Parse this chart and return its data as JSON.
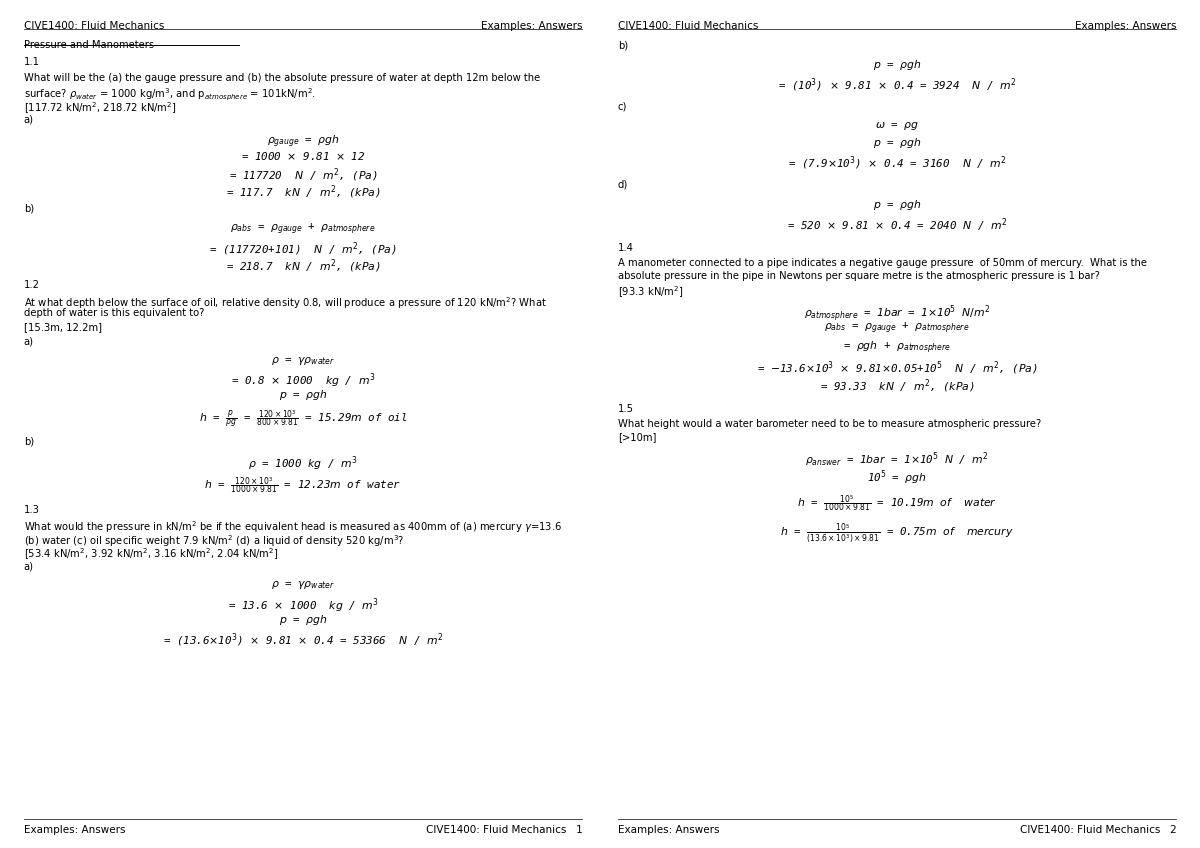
{
  "bg_color": "#ffffff",
  "text_color": "#000000",
  "header_left": "CIVE1400: Fluid Mechanics",
  "header_right": "Examples: Answers",
  "footer_left": "Examples: Answers",
  "footer_right_p1": "CIVE1400: Fluid Mechanics   1",
  "footer_right_p2": "CIVE1400: Fluid Mechanics   2",
  "title": "Pressure and Manometers",
  "font_size_header": 7.5,
  "font_size_body": 7.2,
  "font_size_formula": 7.8
}
